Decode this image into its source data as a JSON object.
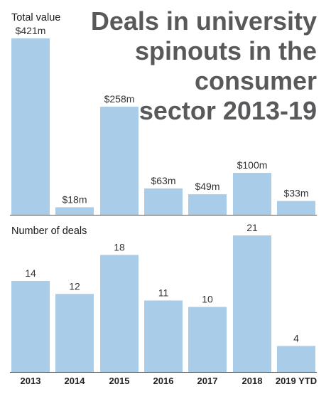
{
  "title_lines": [
    "Deals in university",
    "spinouts in the",
    "consumer",
    "sector 2013-19"
  ],
  "chart_data": [
    {
      "type": "bar",
      "ylabel": "Total value",
      "categories": [
        "2013",
        "2014",
        "2015",
        "2016",
        "2017",
        "2018",
        "2019 YTD"
      ],
      "values": [
        421,
        18,
        258,
        63,
        49,
        100,
        33
      ],
      "data_labels": [
        "$421m",
        "$18m",
        "$258m",
        "$63m",
        "$49m",
        "$100m",
        "$33m"
      ],
      "ylim": [
        0,
        421
      ],
      "grid": false,
      "bar_color": "#a9cce9"
    },
    {
      "type": "bar",
      "ylabel": "Number of deals",
      "categories": [
        "2013",
        "2014",
        "2015",
        "2016",
        "2017",
        "2018",
        "2019 YTD"
      ],
      "values": [
        14,
        12,
        18,
        11,
        10,
        21,
        4
      ],
      "data_labels": [
        "14",
        "12",
        "18",
        "11",
        "10",
        "21",
        "4"
      ],
      "ylim": [
        0,
        21
      ],
      "grid": false,
      "bar_color": "#a9cce9"
    }
  ],
  "colors": {
    "bar": "#a9cce9",
    "title": "#58595b",
    "baseline": "#555555"
  }
}
